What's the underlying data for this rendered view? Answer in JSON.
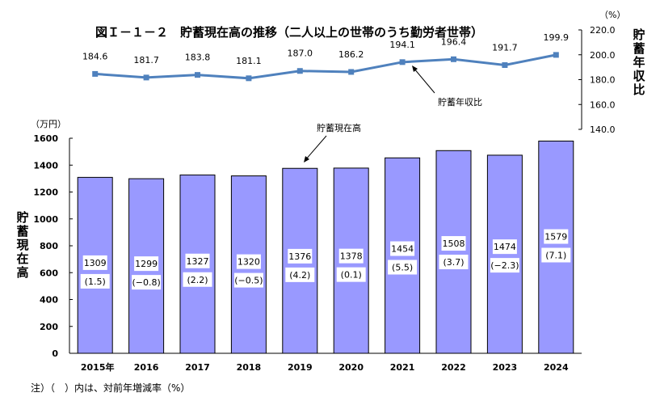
{
  "chart_data": [
    {
      "type": "bar",
      "title": "図Ｉ－１－２　貯蓄現在高の推移（二人以上の世帯のうち勤労者世帯）",
      "unit": "（万円）",
      "ylabel": "貯蓄現在高",
      "series_label": "貯蓄現在高",
      "categories": [
        "2015年",
        "2016",
        "2017",
        "2018",
        "2019",
        "2020",
        "2021",
        "2022",
        "2023",
        "2024"
      ],
      "values": [
        1309,
        1299,
        1327,
        1320,
        1376,
        1378,
        1454,
        1508,
        1474,
        1579
      ],
      "value_labels": [
        "1309",
        "1299",
        "1327",
        "1320",
        "1376",
        "1378",
        "1454",
        "1508",
        "1474",
        "1579"
      ],
      "change_labels": [
        "(1.5)",
        "(−0.8)",
        "(2.2)",
        "(−0.5)",
        "(4.2)",
        "(0.1)",
        "(5.5)",
        "(3.7)",
        "(−2.3)",
        "(7.1)"
      ],
      "ylim": [
        0,
        1600
      ],
      "yticks": [
        "0",
        "200",
        "400",
        "600",
        "800",
        "1000",
        "1200",
        "1400",
        "1600"
      ],
      "bar_color": "#9999ff",
      "grid": false
    },
    {
      "type": "line",
      "unit": "（%）",
      "ylabel": "貯蓄年収比",
      "series_label": "貯蓄年収比",
      "values": [
        184.6,
        181.7,
        183.8,
        181.1,
        187.0,
        186.2,
        194.1,
        196.4,
        191.7,
        199.9
      ],
      "value_labels": [
        "184.6",
        "181.7",
        "183.8",
        "181.1",
        "187.0",
        "186.2",
        "194.1",
        "196.4",
        "191.7",
        "199.9"
      ],
      "ylim": [
        140,
        220
      ],
      "yticks": [
        "140.0",
        "160.0",
        "180.0",
        "200.0",
        "220.0"
      ],
      "line_color": "#4f81bd",
      "axis_position": "right"
    }
  ],
  "note": "注）（　）内は、対前年増減率（%）"
}
